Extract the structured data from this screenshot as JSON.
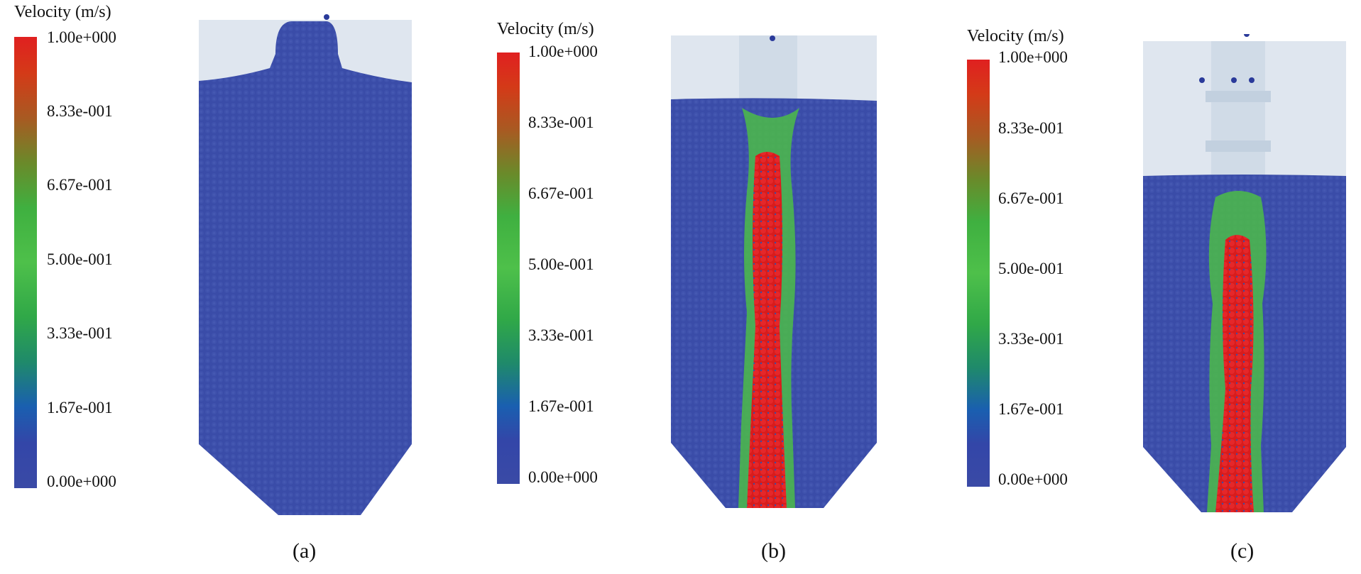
{
  "panels": [
    {
      "caption": "(a)",
      "legend": {
        "title": "Velocity (m/s)",
        "ticks": [
          "1.00e+000",
          "8.33e-001",
          "6.67e-001",
          "5.00e-001",
          "3.33e-001",
          "1.67e-001",
          "0.00e+000"
        ]
      }
    },
    {
      "caption": "(b)",
      "legend": {
        "title": "Velocity (m/s)",
        "ticks": [
          "1.00e+000",
          "8.33e-001",
          "6.67e-001",
          "5.00e-001",
          "3.33e-001",
          "1.67e-001",
          "0.00e+000"
        ]
      }
    },
    {
      "caption": "(c)",
      "legend": {
        "title": "Velocity (m/s)",
        "ticks": [
          "1.00e+000",
          "8.33e-001",
          "6.67e-001",
          "5.00e-001",
          "3.33e-001",
          "1.67e-001",
          "0.00e+000"
        ]
      }
    }
  ],
  "colors": {
    "slow": "#3a4ca8",
    "fast": "#e0201e",
    "mid": "#4cbc48",
    "silo_wall": "#dfe6ef"
  }
}
